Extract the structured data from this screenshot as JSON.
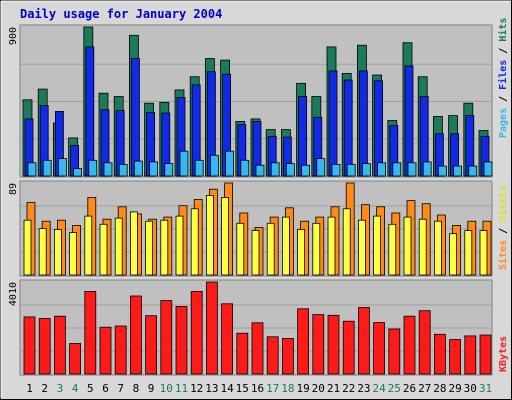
{
  "chart_data": [
    {
      "type": "bar",
      "title": "Daily usage for January 2004",
      "panel": "hits-files-pages",
      "ymax_label": "900",
      "ylim": [
        0,
        900
      ],
      "legend": [
        "Pages",
        "Files",
        "Hits"
      ],
      "legend_placement": "right",
      "categories": [
        "1",
        "2",
        "3",
        "4",
        "5",
        "6",
        "7",
        "8",
        "9",
        "10",
        "11",
        "12",
        "13",
        "14",
        "15",
        "16",
        "17",
        "18",
        "19",
        "20",
        "21",
        "22",
        "23",
        "24",
        "25",
        "26",
        "27",
        "28",
        "29",
        "30",
        "31"
      ],
      "weekend_days": [
        "3",
        "4",
        "10",
        "11",
        "17",
        "18",
        "24",
        "25",
        "31"
      ],
      "series": [
        {
          "name": "Hits",
          "color": "#1b7a5a",
          "values": [
            460,
            525,
            320,
            230,
            900,
            500,
            480,
            850,
            440,
            445,
            520,
            600,
            710,
            700,
            330,
            345,
            280,
            280,
            560,
            480,
            780,
            620,
            790,
            610,
            335,
            805,
            600,
            360,
            365,
            440,
            275
          ]
        },
        {
          "name": "Files",
          "color": "#1229e6",
          "values": [
            345,
            425,
            390,
            185,
            780,
            400,
            395,
            710,
            385,
            380,
            475,
            550,
            630,
            615,
            310,
            330,
            240,
            235,
            480,
            355,
            635,
            580,
            635,
            575,
            305,
            665,
            480,
            255,
            255,
            365,
            240
          ]
        },
        {
          "name": "Pages",
          "color": "#33b8f0",
          "values": [
            80,
            95,
            105,
            45,
            95,
            80,
            70,
            90,
            85,
            75,
            150,
            95,
            125,
            150,
            95,
            65,
            80,
            75,
            65,
            105,
            70,
            70,
            75,
            80,
            80,
            80,
            85,
            60,
            60,
            60,
            85
          ]
        }
      ],
      "grid": true
    },
    {
      "type": "bar",
      "panel": "sites-visits",
      "ymax_label": "89",
      "ylim": [
        0,
        89
      ],
      "legend": [
        "Sites",
        "Visits"
      ],
      "legend_placement": "right",
      "categories": [
        "1",
        "2",
        "3",
        "4",
        "5",
        "6",
        "7",
        "8",
        "9",
        "10",
        "11",
        "12",
        "13",
        "14",
        "15",
        "16",
        "17",
        "18",
        "19",
        "20",
        "21",
        "22",
        "23",
        "24",
        "25",
        "26",
        "27",
        "28",
        "29",
        "30",
        "31"
      ],
      "series": [
        {
          "name": "Visits",
          "color": "#ff8a1a",
          "values": [
            70,
            52,
            53,
            48,
            75,
            54,
            66,
            59,
            54,
            56,
            67,
            73,
            83,
            89,
            60,
            46,
            56,
            65,
            52,
            56,
            66,
            89,
            68,
            66,
            60,
            72,
            69,
            58,
            48,
            52,
            52
          ]
        },
        {
          "name": "Sites",
          "color": "#ffff44",
          "values": [
            53,
            45,
            44,
            41,
            57,
            49,
            55,
            61,
            52,
            53,
            57,
            64,
            77,
            75,
            50,
            43,
            50,
            56,
            44,
            50,
            56,
            64,
            53,
            57,
            49,
            56,
            54,
            52,
            40,
            43,
            43
          ]
        }
      ],
      "grid": true
    },
    {
      "type": "bar",
      "panel": "kbytes",
      "ymax_label": "4010",
      "ylim": [
        0,
        4010
      ],
      "legend": [
        "KBytes"
      ],
      "legend_placement": "right",
      "categories": [
        "1",
        "2",
        "3",
        "4",
        "5",
        "6",
        "7",
        "8",
        "9",
        "10",
        "11",
        "12",
        "13",
        "14",
        "15",
        "16",
        "17",
        "18",
        "19",
        "20",
        "21",
        "22",
        "23",
        "24",
        "25",
        "26",
        "27",
        "28",
        "29",
        "30",
        "31"
      ],
      "series": [
        {
          "name": "KBytes",
          "color": "#ff1a1a",
          "values": [
            2490,
            2420,
            2520,
            1330,
            3600,
            2040,
            2090,
            3400,
            2540,
            3200,
            2940,
            3600,
            4010,
            3060,
            1780,
            2230,
            1620,
            1550,
            2840,
            2590,
            2560,
            2300,
            2900,
            2240,
            1960,
            2520,
            2760,
            1730,
            1500,
            1660,
            1700
          ]
        }
      ],
      "grid": true
    }
  ],
  "colors": {
    "background": "#d8d8d8",
    "plot_bg": "#c0c0c0",
    "title": "#0000cc",
    "day_label": "#000000",
    "weekend_label": "#1b7a5a",
    "separator_slash": "#000000"
  }
}
